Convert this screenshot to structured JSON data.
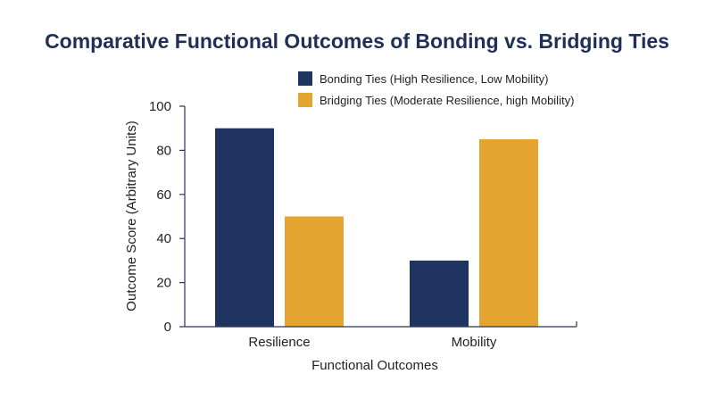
{
  "chart_data": {
    "type": "bar",
    "title": "Comparative Functional Outcomes of Bonding vs. Bridging Ties",
    "categories": [
      "Resilience",
      "Mobility"
    ],
    "series": [
      {
        "name": "Bonding Ties (High Resilience, Low Mobility)",
        "values": [
          90,
          30
        ],
        "color": "#1f3461"
      },
      {
        "name": "Bridging Ties (Moderate Resilience, high Mobility)",
        "values": [
          50,
          85
        ],
        "color": "#e5a32f"
      }
    ],
    "xlabel": "Functional Outcomes",
    "ylabel": "Outcome Score (Arbitrary Units)",
    "ylim": [
      0,
      100
    ],
    "yticks": [
      0,
      20,
      40,
      60,
      80,
      100
    ],
    "legend_position": "top-center",
    "grid": false,
    "axis_color": "#2b3552"
  }
}
